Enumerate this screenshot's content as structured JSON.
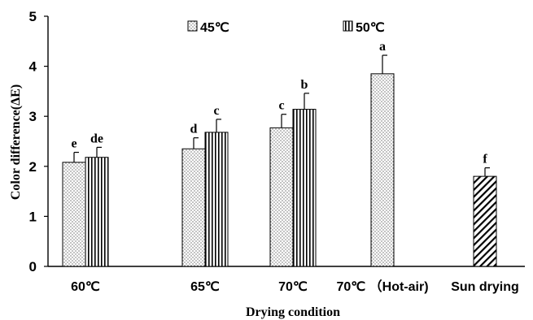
{
  "chart_data": {
    "type": "bar",
    "xlabel": "Drying condition",
    "ylabel": "Color difference(ΔE)",
    "ylim": [
      0,
      5
    ],
    "yticks": [
      "0",
      "1",
      "2",
      "3",
      "4",
      "5"
    ],
    "categories": [
      "60℃",
      "65℃",
      "70℃",
      "70℃ （Hot-air)",
      "Sun drying"
    ],
    "legend": {
      "position": "top-center",
      "entries": [
        "45℃",
        "50℃"
      ]
    },
    "series": [
      {
        "name": "45℃",
        "pattern": "dots",
        "values": [
          2.08,
          2.35,
          2.77,
          3.85,
          null
        ],
        "errors": [
          0.2,
          0.22,
          0.27,
          0.37,
          null
        ],
        "labels": [
          "e",
          "d",
          "c",
          "a",
          ""
        ]
      },
      {
        "name": "50℃",
        "pattern": "vertical-lines",
        "values": [
          2.18,
          2.68,
          3.14,
          null,
          null
        ],
        "errors": [
          0.2,
          0.26,
          0.32,
          null,
          null
        ],
        "labels": [
          "de",
          "c",
          "b",
          "",
          ""
        ]
      },
      {
        "name": "",
        "pattern": "diagonal-lines",
        "values": [
          null,
          null,
          null,
          null,
          1.8
        ],
        "errors": [
          null,
          null,
          null,
          null,
          0.17
        ],
        "labels": [
          "",
          "",
          "",
          "",
          "f"
        ]
      }
    ],
    "grid": false
  }
}
